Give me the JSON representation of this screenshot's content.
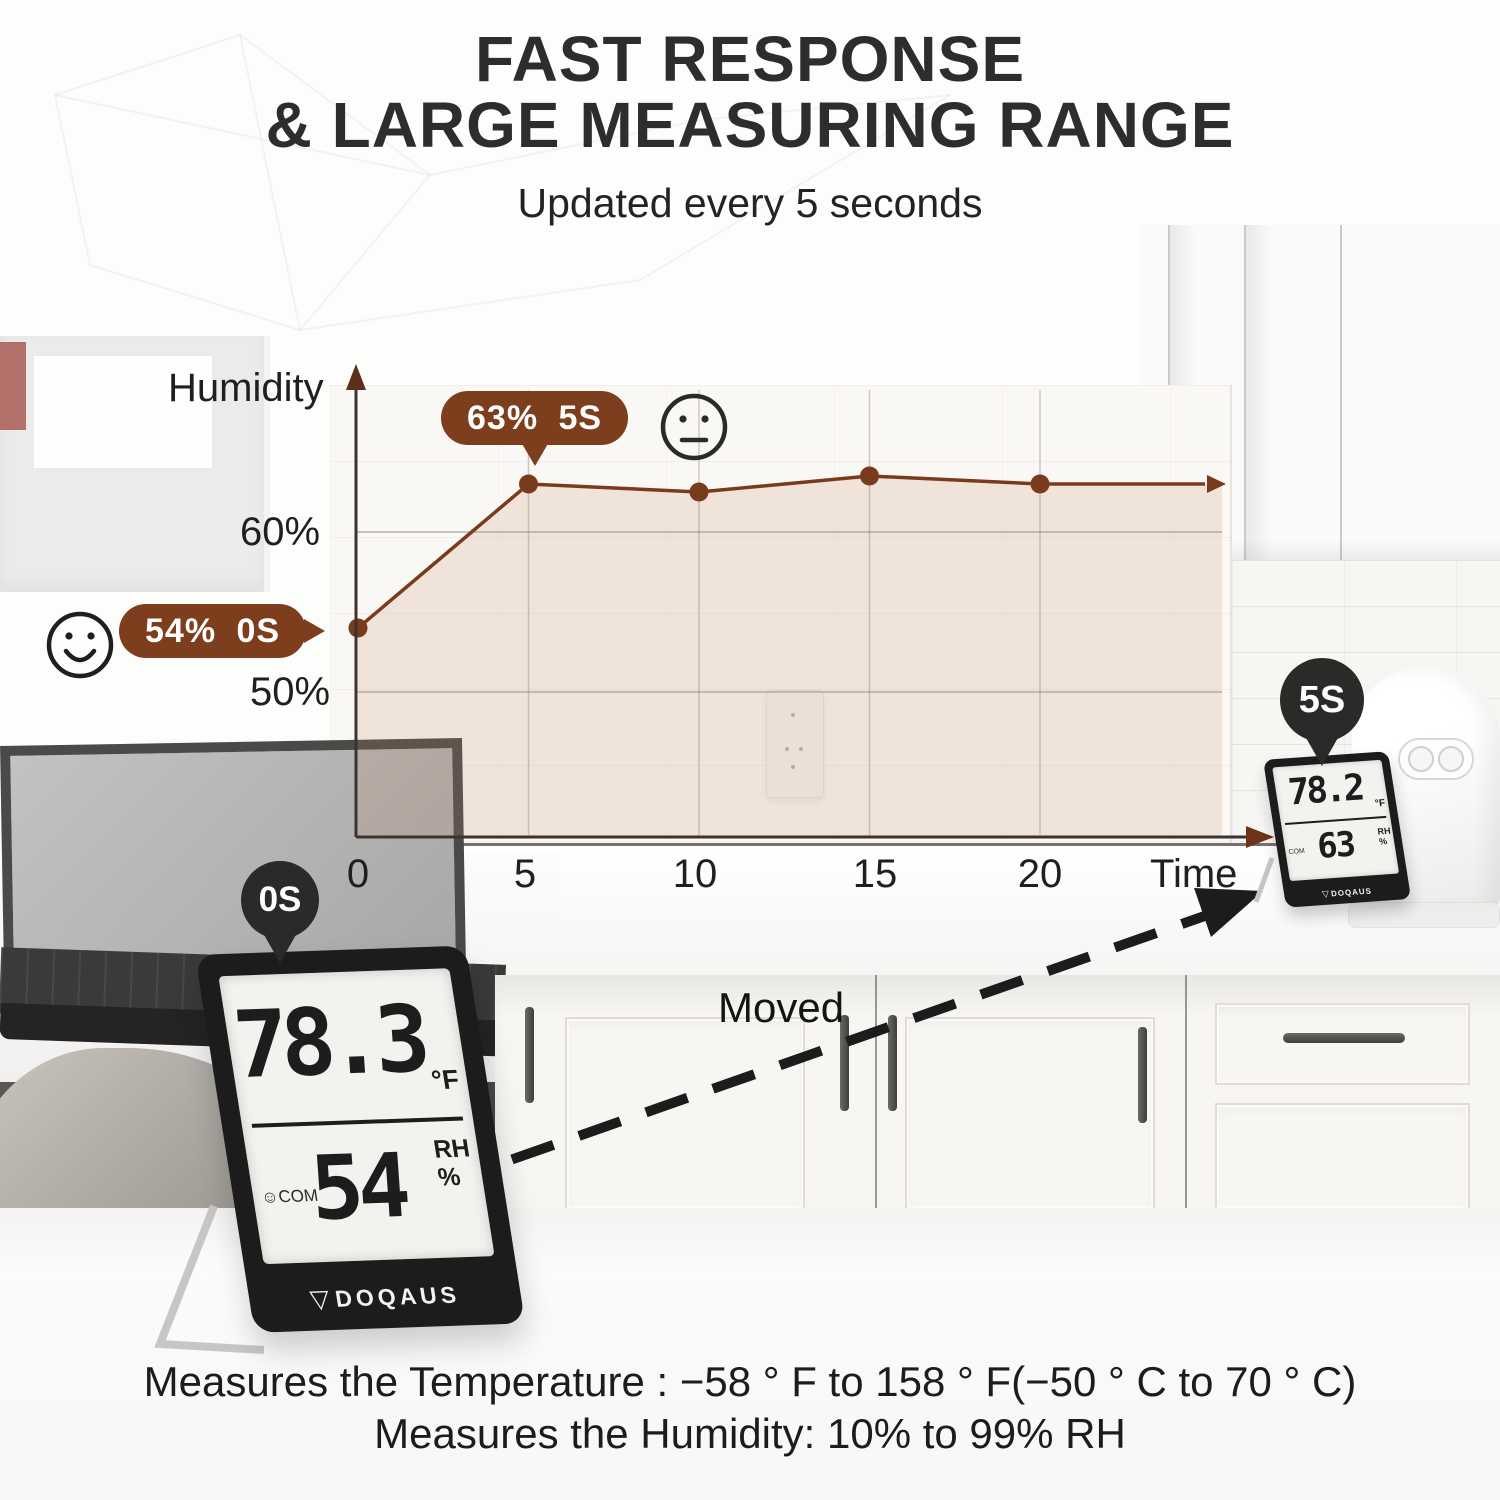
{
  "header": {
    "title_line1": "FAST RESPONSE",
    "title_line2": "& LARGE MEASURING RANGE",
    "subtitle": "Updated every 5 seconds"
  },
  "chart_data": {
    "type": "line",
    "x": [
      0,
      5,
      10,
      15,
      20
    ],
    "x_unit": "seconds",
    "series": [
      {
        "name": "Humidity",
        "values": [
          54,
          63,
          62.5,
          63.5,
          63
        ]
      }
    ],
    "ylabel": "Humidity",
    "xlabel": "Time",
    "xtick_labels": [
      "0",
      "5",
      "10",
      "15",
      "20"
    ],
    "ytick_labels": [
      "50%",
      "60%"
    ],
    "ytick_values": [
      50,
      60
    ],
    "ylim": [
      41,
      68
    ],
    "grid": true,
    "legend": false,
    "line_color": "#7a3b1c",
    "fill_color": "rgba(193,132,99,0.18)",
    "annotations": [
      {
        "text": "54% 0S",
        "x": 0,
        "y": 54,
        "mood": "happy-face"
      },
      {
        "text": "63% 5S",
        "x": 5,
        "y": 63,
        "mood": "neutral-face"
      }
    ]
  },
  "callouts": {
    "pin_start": "0S",
    "pin_end": "5S",
    "moved_label": "Moved"
  },
  "device_large": {
    "temp_value": "78.3",
    "temp_unit": "°F",
    "humidity_value": "54",
    "humidity_unit_line1": "RH",
    "humidity_unit_line2": "%",
    "status": "☺COM",
    "brand": "DOQAUS",
    "logo_glyph": "▽"
  },
  "device_small": {
    "temp_value": "78.2",
    "temp_unit": "°F",
    "humidity_value": "63",
    "humidity_unit_line1": "RH",
    "humidity_unit_line2": "%",
    "status": "COM",
    "brand": "DOQAUS",
    "logo_glyph": "▽"
  },
  "footer": {
    "line1": "Measures the Temperature : −58 ° F to 158 ° F(−50 ° C to 70 ° C)",
    "line2": "Measures the Humidity: 10% to 99% RH"
  },
  "colors": {
    "accent_brown": "#7c3e1d",
    "pin_dark": "#2b2a28",
    "lcd_bg": "#f3f2ee",
    "frame_black": "#1c1c1c"
  }
}
